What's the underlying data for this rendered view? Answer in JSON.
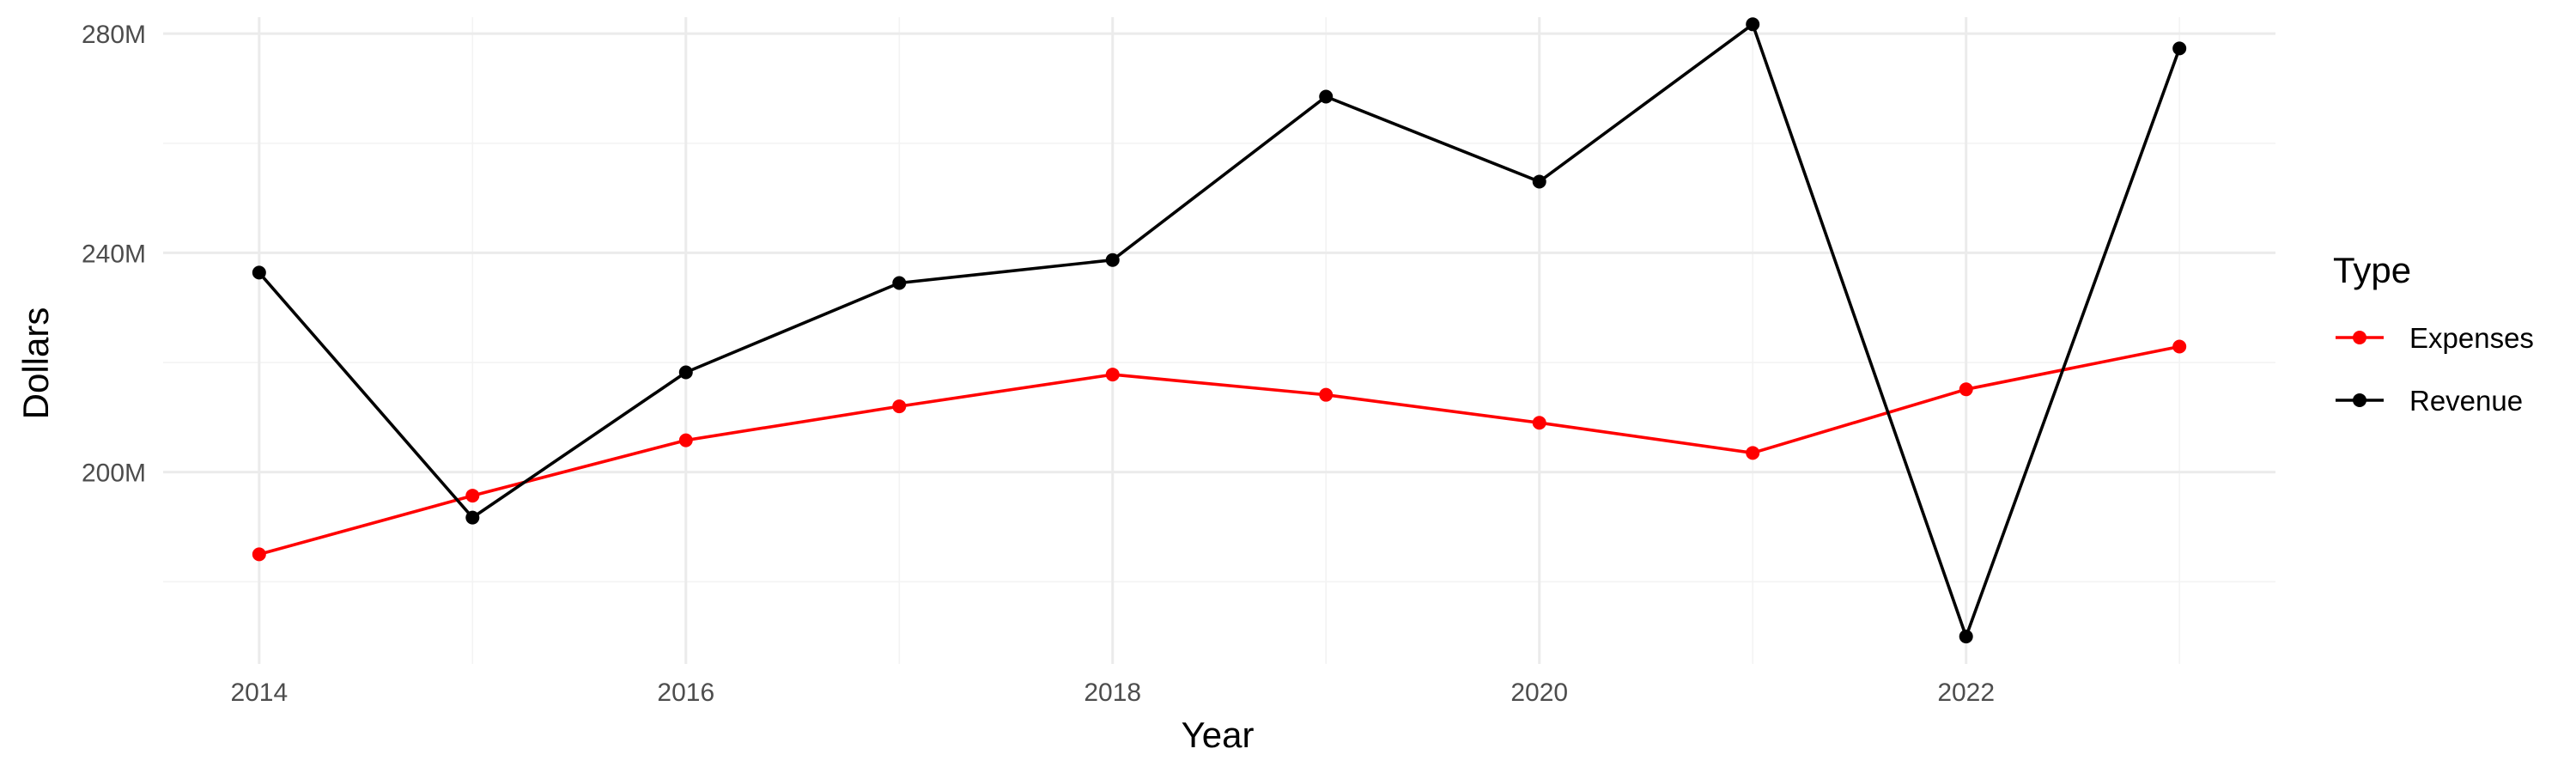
{
  "chart_data": {
    "type": "line",
    "title": "",
    "xlabel": "Year",
    "ylabel": "Dollars",
    "x": [
      2014,
      2015,
      2016,
      2017,
      2018,
      2019,
      2020,
      2021,
      2022,
      2023
    ],
    "xlim": [
      2013.55,
      2023.45
    ],
    "ylim": [
      165000000,
      283000000
    ],
    "x_ticks": [
      2014,
      2016,
      2018,
      2020,
      2022
    ],
    "x_tick_labels": [
      "2014",
      "2016",
      "2018",
      "2020",
      "2022"
    ],
    "y_ticks": [
      200000000,
      240000000,
      280000000
    ],
    "y_tick_labels": [
      "200M",
      "240M",
      "280M"
    ],
    "grid": true,
    "legend": {
      "title": "Type",
      "position": "right"
    },
    "series": [
      {
        "name": "Expenses",
        "color": "#ff0000",
        "values": [
          185000000,
          195700000,
          205800000,
          212000000,
          217800000,
          214100000,
          209000000,
          203500000,
          215100000,
          222900000
        ]
      },
      {
        "name": "Revenue",
        "color": "#000000",
        "values": [
          236400000,
          191700000,
          218200000,
          234500000,
          238700000,
          268500000,
          253000000,
          281700000,
          170000000,
          277300000
        ]
      }
    ]
  }
}
